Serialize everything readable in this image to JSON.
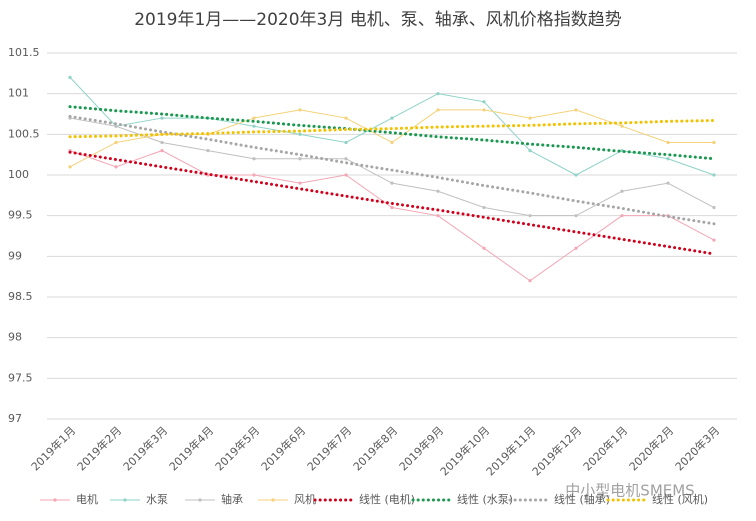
{
  "chart_data": {
    "type": "line",
    "title": "2019年1月——2020年3月 电机、泵、轴承、风机价格指数趋势",
    "watermark": "中小型电机SMEMS",
    "categories": [
      "2019年1月",
      "2019年2月",
      "2019年3月",
      "2019年4月",
      "2019年5月",
      "2019年6月",
      "2019年7月",
      "2019年8月",
      "2019年9月",
      "2019年10月",
      "2019年11月",
      "2019年12月",
      "2020年1月",
      "2020年2月",
      "2020年3月"
    ],
    "ylim": [
      97,
      101.5
    ],
    "yticks": [
      97,
      97.5,
      98,
      98.5,
      99,
      99.5,
      100,
      100.5,
      101,
      101.5
    ],
    "grid": true,
    "legend": "bottom",
    "series": [
      {
        "name": "电机",
        "color": "#f4a6b5",
        "values": [
          100.3,
          100.1,
          100.3,
          100.0,
          100.0,
          99.9,
          100.0,
          99.6,
          99.5,
          99.1,
          98.7,
          99.1,
          99.5,
          99.5,
          99.2
        ]
      },
      {
        "name": "水泵",
        "color": "#8fd3c8",
        "values": [
          101.2,
          100.6,
          100.7,
          100.7,
          100.6,
          100.5,
          100.4,
          100.7,
          101.0,
          100.9,
          100.3,
          100.0,
          100.3,
          100.2,
          100.0
        ]
      },
      {
        "name": "轴承",
        "color": "#c0c0c0",
        "values": [
          100.7,
          100.6,
          100.4,
          100.3,
          100.2,
          100.2,
          100.2,
          99.9,
          99.8,
          99.6,
          99.5,
          99.5,
          99.8,
          99.9,
          99.6
        ]
      },
      {
        "name": "风机",
        "color": "#f5d27a",
        "values": [
          100.1,
          100.4,
          100.5,
          100.5,
          100.7,
          100.8,
          100.7,
          100.4,
          100.8,
          100.8,
          100.7,
          100.8,
          100.6,
          100.4,
          100.4
        ]
      },
      {
        "name": "线性 (电机)",
        "color": "#d0021b",
        "trendline": true,
        "values": [
          100.28,
          100.19,
          100.1,
          100.01,
          99.92,
          99.83,
          99.74,
          99.65,
          99.57,
          99.48,
          99.39,
          99.3,
          99.21,
          99.12,
          99.03
        ]
      },
      {
        "name": "线性 (水泵)",
        "color": "#1a9850",
        "trendline": true,
        "values": [
          100.84,
          100.79,
          100.75,
          100.7,
          100.66,
          100.61,
          100.57,
          100.52,
          100.47,
          100.43,
          100.38,
          100.34,
          100.29,
          100.25,
          100.2
        ]
      },
      {
        "name": "线性 (轴承)",
        "color": "#a6a6a6",
        "trendline": true,
        "values": [
          100.72,
          100.63,
          100.53,
          100.44,
          100.34,
          100.25,
          100.15,
          100.06,
          99.97,
          99.87,
          99.78,
          99.68,
          99.59,
          99.49,
          99.4
        ]
      },
      {
        "name": "线性 (风机)",
        "color": "#f2c200",
        "trendline": true,
        "values": [
          100.47,
          100.48,
          100.5,
          100.51,
          100.53,
          100.54,
          100.56,
          100.57,
          100.59,
          100.6,
          100.61,
          100.63,
          100.64,
          100.66,
          100.67
        ]
      }
    ]
  }
}
